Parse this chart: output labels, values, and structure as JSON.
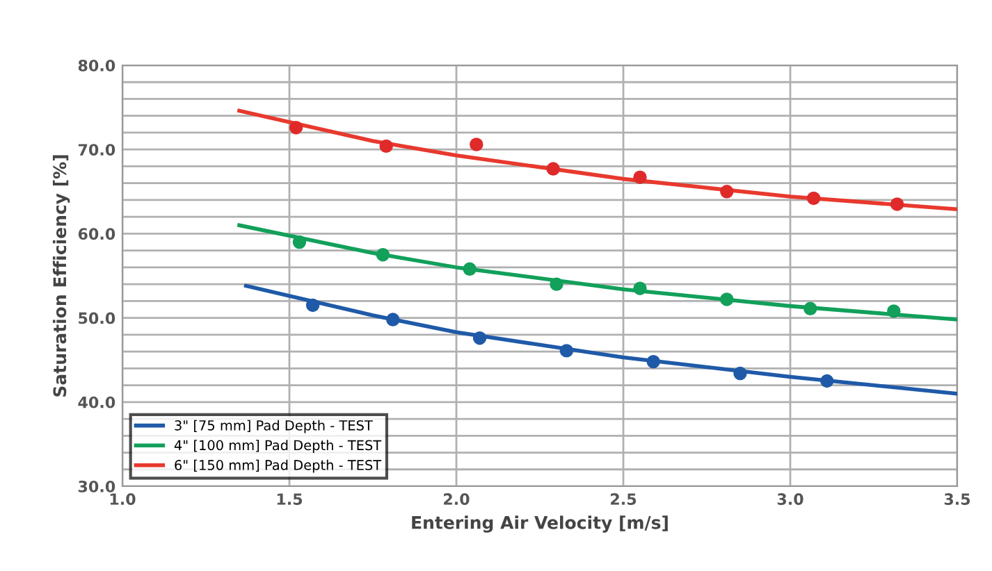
{
  "chart_data": {
    "type": "line",
    "xlabel": "Entering Air Velocity [m/s]",
    "ylabel": "Saturation Efficiency [%]",
    "xlim": [
      1.0,
      3.5
    ],
    "xticks": [
      {
        "value": 1.0,
        "label": "1.0"
      },
      {
        "value": 1.5,
        "label": "1.5"
      },
      {
        "value": 2.0,
        "label": "2.0"
      },
      {
        "value": 2.5,
        "label": "2.5"
      },
      {
        "value": 3.0,
        "label": "3.0"
      },
      {
        "value": 3.5,
        "label": "3.5"
      }
    ],
    "ylim": [
      30,
      80
    ],
    "yticks": [
      {
        "value": 30,
        "label": "30.0"
      },
      {
        "value": 32,
        "label": null
      },
      {
        "value": 34,
        "label": null
      },
      {
        "value": 36,
        "label": null
      },
      {
        "value": 38,
        "label": null
      },
      {
        "value": 40,
        "label": "40.0"
      },
      {
        "value": 42,
        "label": null
      },
      {
        "value": 44,
        "label": null
      },
      {
        "value": 46,
        "label": null
      },
      {
        "value": 48,
        "label": null
      },
      {
        "value": 50,
        "label": "50.0"
      },
      {
        "value": 52,
        "label": null
      },
      {
        "value": 54,
        "label": null
      },
      {
        "value": 56,
        "label": null
      },
      {
        "value": 58,
        "label": null
      },
      {
        "value": 60,
        "label": "60.0"
      },
      {
        "value": 62,
        "label": null
      },
      {
        "value": 64,
        "label": null
      },
      {
        "value": 66,
        "label": null
      },
      {
        "value": 68,
        "label": null
      },
      {
        "value": 70,
        "label": "70.0"
      },
      {
        "value": 72,
        "label": null
      },
      {
        "value": 74,
        "label": null
      },
      {
        "value": 76,
        "label": null
      },
      {
        "value": 78,
        "label": null
      },
      {
        "value": 80,
        "label": "80.0"
      }
    ],
    "grid": true,
    "legend": "bottom left",
    "series": [
      {
        "name": "3\" [75 mm] Pad Depth - TEST",
        "color": "#1f5aa8",
        "x": [
          1.37,
          1.75,
          2.0,
          2.5,
          3.0,
          3.5
        ],
        "values": [
          53.8,
          50.3,
          48.3,
          45.3,
          43.0,
          41.0
        ]
      },
      {
        "name": "4\" [100 mm] Pad Depth - TEST",
        "color": "#12a05a",
        "x": [
          1.35,
          1.75,
          2.0,
          2.5,
          3.0,
          3.5
        ],
        "values": [
          61.0,
          57.7,
          56.0,
          53.4,
          51.4,
          49.8
        ]
      },
      {
        "name": "6\" [150 mm] Pad Depth - TEST",
        "color": "#e8392e",
        "x": [
          1.35,
          1.75,
          2.0,
          2.5,
          3.0,
          3.5
        ],
        "values": [
          74.6,
          71.0,
          69.3,
          66.5,
          64.4,
          62.9
        ]
      },
      {
        "type": "scatter",
        "marker": "circle",
        "color": "#1f5aa8",
        "x": [
          1.57,
          1.81,
          2.07,
          2.33,
          2.59,
          2.85,
          3.11
        ],
        "values": [
          51.5,
          49.8,
          47.6,
          46.1,
          44.8,
          43.4,
          42.5
        ]
      },
      {
        "type": "scatter",
        "marker": "circle",
        "color": "#12a05a",
        "x": [
          1.53,
          1.78,
          2.04,
          2.3,
          2.55,
          2.81,
          3.06,
          3.31
        ],
        "values": [
          59.0,
          57.5,
          55.8,
          54.0,
          53.5,
          52.2,
          51.1,
          50.8
        ]
      },
      {
        "type": "scatter",
        "marker": "circle",
        "color": "#e02a2a",
        "x": [
          1.52,
          1.79,
          2.06,
          2.29,
          2.55,
          2.81,
          3.07,
          3.32
        ],
        "values": [
          72.6,
          70.4,
          70.6,
          67.7,
          66.7,
          65.0,
          64.2,
          63.5
        ]
      }
    ]
  }
}
